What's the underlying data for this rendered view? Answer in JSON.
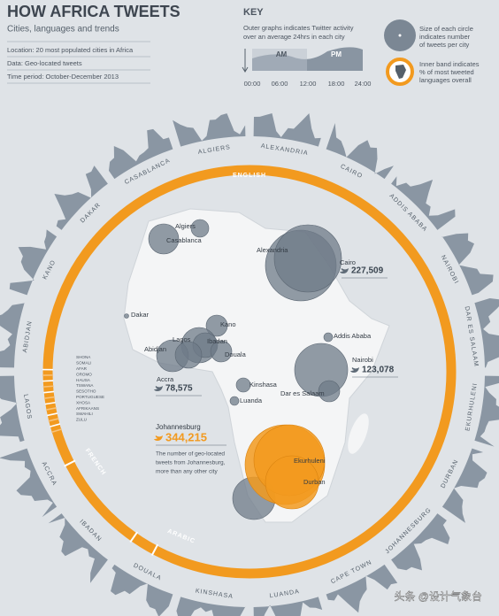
{
  "header": {
    "title": "HOW AFRICA TWEETS",
    "subtitle": "Cities, languages and trends",
    "info": [
      "Location: 20 most populated cities in Africa",
      "Data: Geo-located tweets",
      "Time period: October-December 2013"
    ]
  },
  "key": {
    "title": "KEY",
    "activity_text": [
      "Outer graphs indicates Twitter activity",
      "over an average 24hrs in each city"
    ],
    "am": "AM",
    "pm": "PM",
    "times": [
      "00:00",
      "06:00",
      "12:00",
      "18:00",
      "24:00"
    ],
    "circle_text": [
      "Size of each circle",
      "indicates number",
      "of tweets per city"
    ],
    "band_text": [
      "Inner band indicates",
      "% of most tweeted",
      "languages overall"
    ]
  },
  "ring_cities": [
    "ALEXANDRIA",
    "CAIRO",
    "ADDIS ABABA",
    "NAIROBI",
    "DAR ES SALAAM",
    "EKURHULENI",
    "DURBAN",
    "JOHANNESBURG",
    "CAPE TOWN",
    "LUANDA",
    "KINSHASA",
    "DOUALA",
    "IBADAN",
    "ACCRA",
    "LAGOS",
    "ABIDJAN",
    "KANO",
    "DAKAR",
    "CASABLANCA",
    "ALGIERS"
  ],
  "languages": {
    "major": [
      "ENGLISH",
      "FRENCH",
      "ARABIC"
    ],
    "minor": [
      "SHONA",
      "SOMALI",
      "AFAR",
      "OROMO",
      "HAUSA",
      "TSWANA",
      "SESOTHO",
      "PORTUGUESE",
      "XHOSA",
      "AFRIKAANS",
      "SWAHILI",
      "ZULU"
    ]
  },
  "map_cities": [
    "Algiers",
    "Casablanca",
    "Alexandria",
    "Cairo",
    "Dakar",
    "Kano",
    "Lagos",
    "Ibadan",
    "Abidjan",
    "Douala",
    "Accra",
    "Addis Ababa",
    "Nairobi",
    "Kinshasa",
    "Dar es Salaam",
    "Luanda",
    "Ekurhuleni",
    "Durban",
    "Johannesburg"
  ],
  "tweet_counts": [
    {
      "city": "Cairo",
      "count": "227,509"
    },
    {
      "city": "Nairobi",
      "count": "123,078"
    },
    {
      "city": "Accra",
      "count": "78,575"
    },
    {
      "city": "Johannesburg",
      "count": "344,215"
    }
  ],
  "annotation": [
    "The number of geo-located",
    "tweets from Johannesburg,",
    "more than any other city"
  ],
  "watermark": "头条 @设计气象台"
}
